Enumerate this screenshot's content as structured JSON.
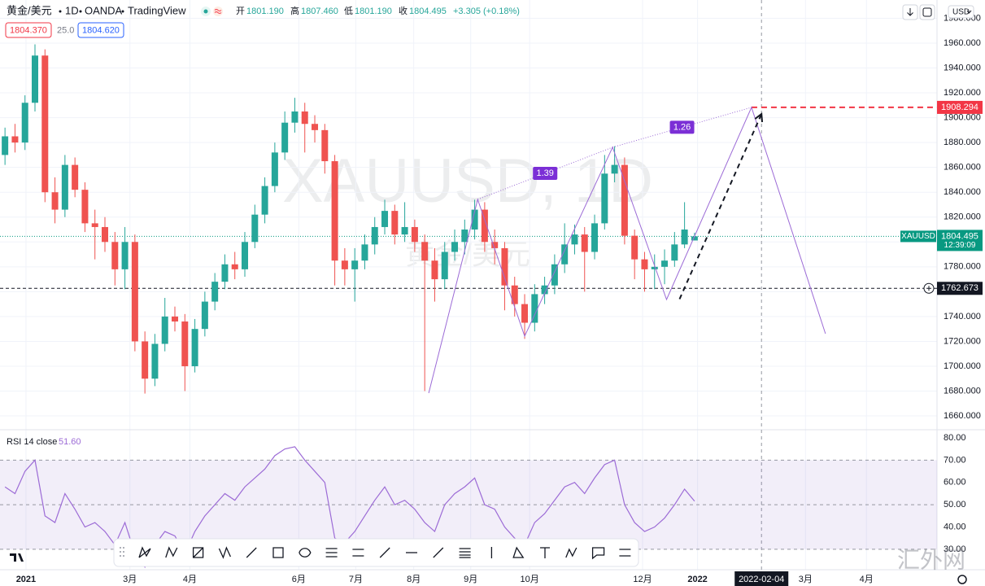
{
  "header": {
    "symbol": "黄金/美元",
    "interval": "1D",
    "exchange": "OANDA",
    "platform": "TradingView",
    "ohlc": [
      {
        "label": "开",
        "value": "1801.190"
      },
      {
        "label": "高",
        "value": "1807.460"
      },
      {
        "label": "低",
        "value": "1801.190"
      },
      {
        "label": "收",
        "value": "1804.495"
      }
    ],
    "change": "+3.305 (+0.18%)",
    "bid": "1804.370",
    "spread": "25.0",
    "ask": "1804.620",
    "currency": "USD"
  },
  "watermark": {
    "title": "XAUUSD, 1D",
    "subtitle": "黄金/美元",
    "site": "汇外网"
  },
  "chart_data": [
    {
      "type": "candlestick",
      "up_color": "#26a69a",
      "down_color": "#ef5350",
      "grid": true,
      "candles": [
        [
          1870,
          1892,
          1862,
          1885
        ],
        [
          1885,
          1895,
          1872,
          1880
        ],
        [
          1880,
          1918,
          1874,
          1912
        ],
        [
          1912,
          1959,
          1905,
          1950
        ],
        [
          1950,
          1955,
          1832,
          1840
        ],
        [
          1840,
          1852,
          1815,
          1826
        ],
        [
          1826,
          1870,
          1820,
          1862
        ],
        [
          1862,
          1868,
          1836,
          1842
        ],
        [
          1842,
          1848,
          1808,
          1815
        ],
        [
          1815,
          1826,
          1786,
          1812
        ],
        [
          1812,
          1820,
          1792,
          1800
        ],
        [
          1800,
          1808,
          1765,
          1778
        ],
        [
          1778,
          1812,
          1762,
          1800
        ],
        [
          1800,
          1806,
          1712,
          1720
        ],
        [
          1720,
          1728,
          1678,
          1690
        ],
        [
          1690,
          1726,
          1684,
          1718
        ],
        [
          1718,
          1755,
          1712,
          1740
        ],
        [
          1740,
          1748,
          1728,
          1736
        ],
        [
          1736,
          1742,
          1680,
          1700
        ],
        [
          1700,
          1738,
          1695,
          1730
        ],
        [
          1730,
          1760,
          1724,
          1752
        ],
        [
          1752,
          1775,
          1745,
          1768
        ],
        [
          1768,
          1790,
          1762,
          1782
        ],
        [
          1782,
          1792,
          1770,
          1778
        ],
        [
          1778,
          1808,
          1772,
          1800
        ],
        [
          1800,
          1830,
          1795,
          1822
        ],
        [
          1822,
          1852,
          1815,
          1845
        ],
        [
          1845,
          1880,
          1840,
          1872
        ],
        [
          1872,
          1905,
          1866,
          1896
        ],
        [
          1896,
          1916,
          1888,
          1905
        ],
        [
          1905,
          1912,
          1872,
          1895
        ],
        [
          1895,
          1902,
          1880,
          1890
        ],
        [
          1890,
          1895,
          1855,
          1865
        ],
        [
          1865,
          1870,
          1765,
          1785
        ],
        [
          1785,
          1795,
          1765,
          1778
        ],
        [
          1778,
          1795,
          1752,
          1785
        ],
        [
          1785,
          1806,
          1778,
          1798
        ],
        [
          1798,
          1820,
          1790,
          1812
        ],
        [
          1812,
          1834,
          1806,
          1825
        ],
        [
          1825,
          1830,
          1798,
          1806
        ],
        [
          1806,
          1832,
          1800,
          1812
        ],
        [
          1812,
          1818,
          1792,
          1800
        ],
        [
          1800,
          1806,
          1680,
          1785
        ],
        [
          1785,
          1795,
          1752,
          1770
        ],
        [
          1770,
          1800,
          1762,
          1792
        ],
        [
          1792,
          1810,
          1785,
          1800
        ],
        [
          1800,
          1818,
          1790,
          1810
        ],
        [
          1810,
          1834,
          1802,
          1826
        ],
        [
          1826,
          1832,
          1792,
          1800
        ],
        [
          1800,
          1810,
          1782,
          1795
        ],
        [
          1795,
          1800,
          1745,
          1765
        ],
        [
          1765,
          1772,
          1740,
          1750
        ],
        [
          1750,
          1758,
          1722,
          1735
        ],
        [
          1735,
          1766,
          1728,
          1758
        ],
        [
          1758,
          1772,
          1750,
          1765
        ],
        [
          1765,
          1790,
          1758,
          1782
        ],
        [
          1782,
          1815,
          1775,
          1798
        ],
        [
          1798,
          1814,
          1790,
          1806
        ],
        [
          1806,
          1812,
          1760,
          1792
        ],
        [
          1792,
          1822,
          1786,
          1815
        ],
        [
          1815,
          1870,
          1810,
          1855
        ],
        [
          1855,
          1877,
          1848,
          1862
        ],
        [
          1862,
          1868,
          1798,
          1805
        ],
        [
          1805,
          1810,
          1770,
          1786
        ],
        [
          1786,
          1792,
          1760,
          1778
        ],
        [
          1778,
          1790,
          1762,
          1780
        ],
        [
          1780,
          1794,
          1766,
          1785
        ],
        [
          1785,
          1808,
          1780,
          1798
        ],
        [
          1798,
          1832,
          1795,
          1810
        ],
        [
          1801.19,
          1807.46,
          1801.19,
          1804.495
        ]
      ],
      "xlim": [
        -0.5,
        93.1
      ],
      "xticks": [
        {
          "value": 2.1,
          "label": "2021"
        },
        {
          "value": 12.5,
          "label": "3月"
        },
        {
          "value": 18.5,
          "label": "4月"
        },
        {
          "value": 29.4,
          "label": "6月"
        },
        {
          "value": 35.1,
          "label": "7月"
        },
        {
          "value": 40.9,
          "label": "8月"
        },
        {
          "value": 46.6,
          "label": "9月"
        },
        {
          "value": 52.5,
          "label": "10月"
        },
        {
          "value": 63.8,
          "label": "12月"
        },
        {
          "value": 69.3,
          "label": "2022"
        },
        {
          "value": 80.1,
          "label": "3月"
        },
        {
          "value": 86.2,
          "label": "4月"
        }
      ],
      "crosshair": {
        "value": 75.7,
        "label": "2022-02-04"
      },
      "ylim": [
        1648.9,
        1994.7
      ],
      "yticks": [
        {
          "value": 1660,
          "label": "1660.000"
        },
        {
          "value": 1680,
          "label": "1680.000"
        },
        {
          "value": 1700,
          "label": "1700.000"
        },
        {
          "value": 1720,
          "label": "1720.000"
        },
        {
          "value": 1740,
          "label": "1740.000"
        },
        {
          "value": 1760,
          "label": "1760.000"
        },
        {
          "value": 1780,
          "label": "1780.000"
        },
        {
          "value": 1800,
          "label": "1800.000"
        },
        {
          "value": 1820,
          "label": "1820.000"
        },
        {
          "value": 1840,
          "label": "1840.000"
        },
        {
          "value": 1860,
          "label": "1860.000"
        },
        {
          "value": 1880,
          "label": "1880.000"
        },
        {
          "value": 1900,
          "label": "1900.000"
        },
        {
          "value": 1920,
          "label": "1920.000"
        },
        {
          "value": 1940,
          "label": "1940.000"
        },
        {
          "value": 1960,
          "label": "1960.000"
        },
        {
          "value": 1980,
          "label": "1980.000"
        }
      ],
      "price_lines": [
        {
          "value": 1908.294,
          "color": "#f23645",
          "style": "dashed"
        },
        {
          "value": 1804.495,
          "color": "#089981",
          "style": "dotted",
          "symbol_label": "XAUUSD",
          "countdown": "12:39:09"
        },
        {
          "value": 1762.673,
          "color": "#131722",
          "style": "dashed"
        }
      ],
      "pattern": {
        "color": "#9c6bd6",
        "x": [
          42.4,
          47.3,
          52,
          60.8,
          66.2,
          74.7,
          82.1
        ],
        "y": [
          1678.4,
          1834.2,
          1724.2,
          1876.2,
          1753.7,
          1908.294,
          1726.2
        ],
        "ratios": [
          1.39,
          1.26
        ]
      },
      "projection": {
        "x": [
          67.5,
          75.7
        ],
        "y": [
          1754,
          1903
        ]
      }
    },
    {
      "type": "line",
      "title": "RSI 14 close",
      "readout": {
        "value": 51.6,
        "label": "51.60"
      },
      "color": "#9c6bd6",
      "values": [
        58,
        55,
        65,
        70,
        45,
        42,
        55,
        48,
        40,
        42,
        38,
        32,
        42,
        28,
        22,
        32,
        38,
        36,
        28,
        38,
        45,
        50,
        55,
        52,
        58,
        62,
        66,
        72,
        75,
        76,
        70,
        65,
        60,
        35,
        33,
        38,
        45,
        52,
        58,
        50,
        52,
        48,
        42,
        38,
        50,
        55,
        58,
        62,
        50,
        48,
        40,
        35,
        32,
        42,
        46,
        52,
        58,
        60,
        55,
        62,
        68,
        70,
        50,
        42,
        38,
        40,
        44,
        50,
        57,
        51.6
      ],
      "band": [
        70,
        30
      ],
      "midline": 50,
      "ylim": [
        24.5,
        84
      ],
      "yticks": [
        {
          "value": 80,
          "label": "80.00"
        },
        {
          "value": 70,
          "label": "70.00"
        },
        {
          "value": 60,
          "label": "60.00"
        },
        {
          "value": 50,
          "label": "50.00"
        },
        {
          "value": 40,
          "label": "40.00"
        },
        {
          "value": 30,
          "label": "30.00"
        }
      ]
    }
  ]
}
